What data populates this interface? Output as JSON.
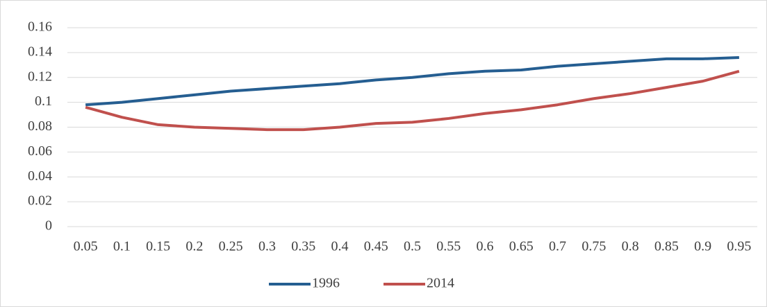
{
  "chart_data": {
    "type": "line",
    "categories": [
      "0.05",
      "0.1",
      "0.15",
      "0.2",
      "0.25",
      "0.3",
      "0.35",
      "0.4",
      "0.45",
      "0.5",
      "0.55",
      "0.6",
      "0.65",
      "0.7",
      "0.75",
      "0.8",
      "0.85",
      "0.9",
      "0.95"
    ],
    "series": [
      {
        "name": "1996",
        "color": "#255e91",
        "values": [
          0.098,
          0.1,
          0.103,
          0.106,
          0.109,
          0.111,
          0.113,
          0.115,
          0.118,
          0.12,
          0.123,
          0.125,
          0.126,
          0.129,
          0.131,
          0.133,
          0.135,
          0.135,
          0.136
        ]
      },
      {
        "name": "2014",
        "color": "#c0504d",
        "values": [
          0.096,
          0.088,
          0.082,
          0.08,
          0.079,
          0.078,
          0.078,
          0.08,
          0.083,
          0.084,
          0.087,
          0.091,
          0.094,
          0.098,
          0.103,
          0.107,
          0.112,
          0.117,
          0.125
        ]
      }
    ],
    "ylim": [
      0,
      0.16
    ],
    "yticks": [
      0,
      0.02,
      0.04,
      0.06,
      0.08,
      0.1,
      0.12,
      0.14,
      0.16
    ],
    "grid": true,
    "legend": "bottom"
  }
}
